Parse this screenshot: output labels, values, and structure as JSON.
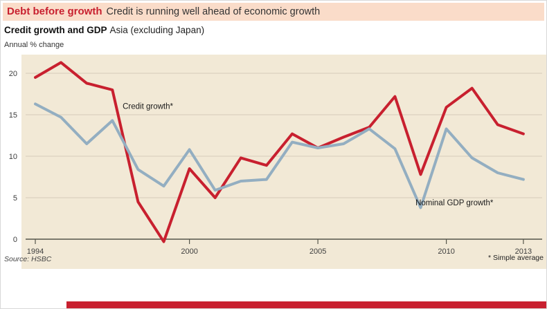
{
  "header": {
    "title": "Debt before growth",
    "subtitle": "Credit is running well ahead of economic growth"
  },
  "panel": {
    "heading_bold": "Credit growth and GDP",
    "heading_rest": "Asia (excluding Japan)",
    "unit_label": "Annual % change",
    "source": "Source: HSBC",
    "footnote": "* Simple average"
  },
  "colors": {
    "accent_red": "#c8202f",
    "line_blue": "#93aec1",
    "plot_bg": "#f2e9d6",
    "header_bg": "#fadcc9"
  },
  "chart_data": {
    "type": "line",
    "title": "Credit growth and GDP, Asia (excluding Japan)",
    "ylabel": "Annual % change",
    "x": [
      1994,
      1995,
      1996,
      1997,
      1998,
      1999,
      2000,
      2001,
      2002,
      2003,
      2004,
      2005,
      2006,
      2007,
      2008,
      2009,
      2010,
      2011,
      2012,
      2013
    ],
    "xticks": [
      1994,
      2000,
      2005,
      2010,
      2013
    ],
    "yticks": [
      0,
      5,
      10,
      15,
      20
    ],
    "ylim": [
      -2,
      22
    ],
    "grid": true,
    "legend_position": "inline-annotations",
    "series": [
      {
        "name": "Credit growth*",
        "color": "#c8202f",
        "values": [
          19.5,
          21.3,
          18.8,
          18.0,
          4.5,
          -0.3,
          8.5,
          5.0,
          9.8,
          8.9,
          12.7,
          11.0,
          12.3,
          13.5,
          17.2,
          7.8,
          15.9,
          18.2,
          13.8,
          12.7
        ]
      },
      {
        "name": "Nominal GDP growth*",
        "color": "#93aec1",
        "values": [
          16.3,
          14.7,
          11.5,
          14.3,
          8.4,
          6.4,
          10.8,
          5.9,
          7.0,
          7.2,
          11.7,
          11.0,
          11.5,
          13.3,
          10.9,
          3.8,
          13.3,
          9.8,
          8.0,
          7.2
        ]
      }
    ],
    "annotations": [
      {
        "text": "Credit growth*",
        "x": 1997.4,
        "y": 15.7
      },
      {
        "text": "Nominal GDP growth*",
        "x": 2008.8,
        "y": 4.1
      }
    ]
  }
}
